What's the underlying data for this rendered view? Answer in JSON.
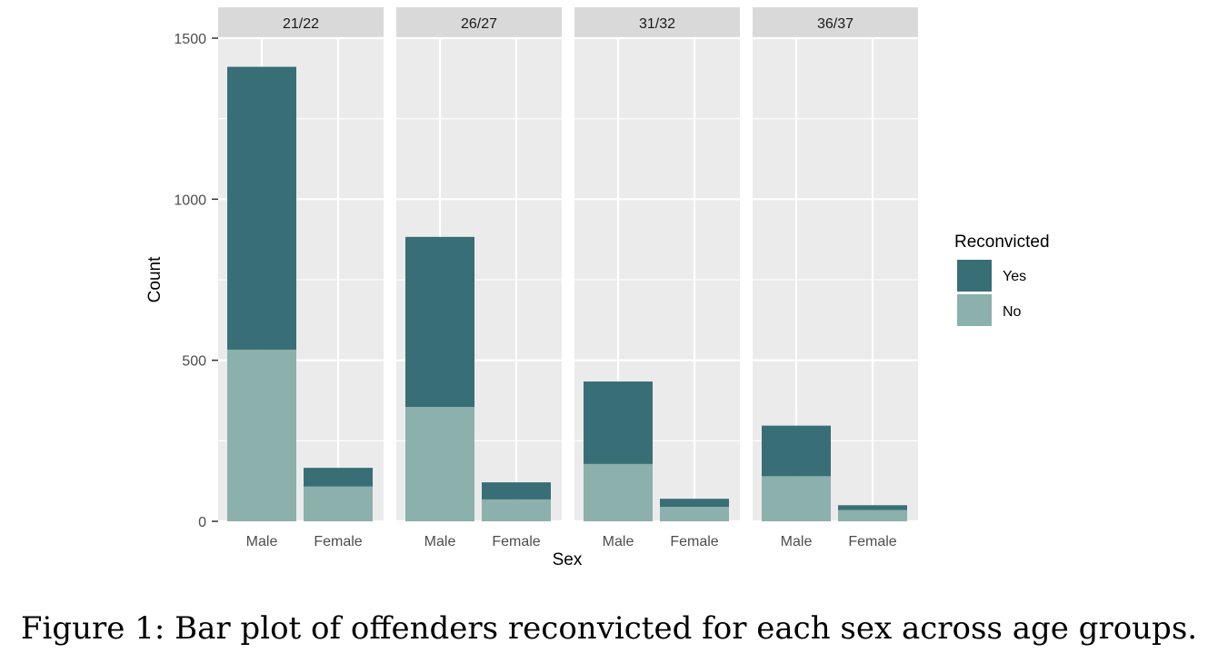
{
  "chart_data": {
    "type": "bar",
    "stacked": true,
    "facet_label": "",
    "facets": [
      "21/22",
      "26/27",
      "31/32",
      "36/37"
    ],
    "categories": [
      "Male",
      "Female"
    ],
    "series": [
      {
        "name": "No",
        "color": "#8cb0ac",
        "values": [
          [
            533,
            108
          ],
          [
            355,
            68
          ],
          [
            178,
            45
          ],
          [
            140,
            35
          ]
        ]
      },
      {
        "name": "Yes",
        "color": "#386e75",
        "values": [
          [
            878,
            58
          ],
          [
            528,
            53
          ],
          [
            256,
            25
          ],
          [
            157,
            15
          ]
        ]
      }
    ],
    "totals": [
      [
        1411,
        166
      ],
      [
        883,
        121
      ],
      [
        434,
        70
      ],
      [
        297,
        50
      ]
    ],
    "xlabel": "Sex",
    "ylabel": "Count",
    "ylim": [
      0,
      1500
    ],
    "yticks": [
      0,
      500,
      1000,
      1500
    ],
    "grid": true,
    "legend": {
      "title": "Reconvicted",
      "placement": "right",
      "entries": [
        {
          "name": "Yes",
          "color": "#386e75"
        },
        {
          "name": "No",
          "color": "#8cb0ac"
        }
      ]
    }
  },
  "caption": "Figure 1: Bar plot of offenders reconvicted for each sex across age groups."
}
